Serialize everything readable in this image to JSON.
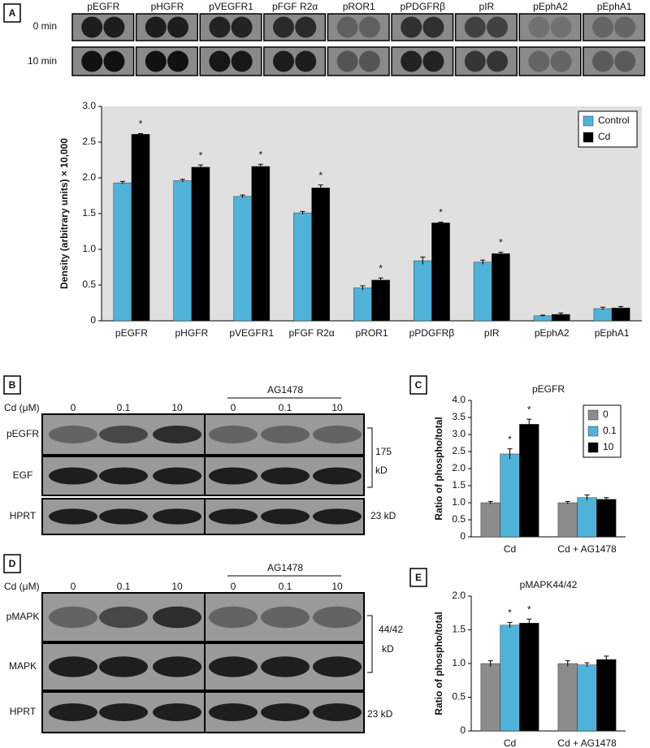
{
  "figure": {
    "panel_labels": [
      "A",
      "B",
      "C",
      "D",
      "E"
    ],
    "array_blot": {
      "columns": [
        "pEGFR",
        "pHGFR",
        "pVEGFR1",
        "pFGF R2α",
        "pROR1",
        "pPDGFRβ",
        "pIR",
        "pEphA2",
        "pEphA1"
      ],
      "rows": [
        "0 min",
        "10 min"
      ]
    },
    "blot_B": {
      "dose_label": "Cd (μM)",
      "doses": [
        "0",
        "0.1",
        "10",
        "0",
        "0.1",
        "10"
      ],
      "inhibitor": "AG1478",
      "rows": [
        "pEGFR",
        "EGF",
        "HPRT"
      ],
      "size_labels": [
        "175",
        "kD",
        "23 kD"
      ]
    },
    "blot_D": {
      "dose_label": "Cd (μM)",
      "doses": [
        "0",
        "0.1",
        "10",
        "0",
        "0.1",
        "10"
      ],
      "inhibitor": "AG1478",
      "rows": [
        "pMAPK",
        "MAPK",
        "HPRT"
      ],
      "size_labels": [
        "44/42",
        "kD",
        "23 kD"
      ]
    }
  },
  "chart_data": [
    {
      "type": "bar",
      "y_label": "Density (arbitrary units) × 10,000",
      "background": "#e0e0e0",
      "legend": "upper right",
      "categories": [
        "pEGFR",
        "pHGFR",
        "pVEGFR1",
        "pFGF R2α",
        "pROR1",
        "pPDGFRβ",
        "pIR",
        "pEphA2",
        "pEphA1"
      ],
      "series": [
        {
          "name": "Control",
          "color": "#4fb3d9",
          "values": [
            1.93,
            1.96,
            1.74,
            1.51,
            0.46,
            0.84,
            0.82,
            0.07,
            0.17
          ],
          "errors": [
            0.02,
            0.02,
            0.02,
            0.02,
            0.03,
            0.05,
            0.03,
            0.01,
            0.02
          ],
          "significance": [
            null,
            null,
            null,
            null,
            null,
            null,
            null,
            null,
            null
          ]
        },
        {
          "name": "Cd",
          "color": "#000000",
          "values": [
            2.61,
            2.15,
            2.16,
            1.86,
            0.57,
            1.37,
            0.94,
            0.09,
            0.18
          ],
          "errors": [
            0.01,
            0.03,
            0.03,
            0.04,
            0.03,
            0.01,
            0.02,
            0.02,
            0.02
          ],
          "significance": [
            "*",
            "*",
            "*",
            "*",
            "*",
            "*",
            "*",
            null,
            null
          ]
        }
      ],
      "ylim": [
        0,
        3
      ],
      "yticks": [
        0,
        0.5,
        {
          "value": 1,
          "label": "1.0"
        },
        1.5,
        {
          "value": 2,
          "label": "2.0"
        },
        2.5,
        {
          "value": 3,
          "label": "3.0"
        }
      ]
    },
    {
      "type": "bar",
      "title": "pEGFR",
      "y_label": "Ratio of phospho/total",
      "background": "#ffffff",
      "legend": "upper right",
      "categories": [
        "Cd",
        "Cd + AG1478"
      ],
      "series": [
        {
          "name": "0",
          "color": "#8c8c8c",
          "values": [
            1.0,
            1.0
          ],
          "errors": [
            0.04,
            0.04
          ],
          "significance": [
            null,
            null
          ]
        },
        {
          "name": "0.1",
          "color": "#4fb3d9",
          "values": [
            2.43,
            1.15
          ],
          "errors": [
            0.15,
            0.08
          ],
          "significance": [
            "*",
            null
          ]
        },
        {
          "name": "10",
          "color": "#000000",
          "values": [
            3.3,
            1.1
          ],
          "errors": [
            0.15,
            0.05
          ],
          "significance": [
            "*",
            null
          ]
        }
      ],
      "ylim": [
        0,
        4
      ],
      "yticks": [
        0,
        0.5,
        {
          "value": 1,
          "label": "1.0"
        },
        1.5,
        {
          "value": 2,
          "label": "2.0"
        },
        2.5,
        {
          "value": 3,
          "label": "3.0"
        },
        3.5,
        {
          "value": 4,
          "label": "4.0"
        }
      ]
    },
    {
      "type": "bar",
      "title": "pMAPK44/42",
      "y_label": "Ratio of phospho/total",
      "background": "#ffffff",
      "categories": [
        "Cd",
        "Cd + AG1478"
      ],
      "series": [
        {
          "name": "0",
          "color": "#8c8c8c",
          "values": [
            1.0,
            1.0
          ],
          "errors": [
            0.04,
            0.04
          ],
          "significance": [
            null,
            null
          ]
        },
        {
          "name": "0.1",
          "color": "#4fb3d9",
          "values": [
            1.57,
            0.98
          ],
          "errors": [
            0.04,
            0.03
          ],
          "significance": [
            "*",
            null
          ]
        },
        {
          "name": "10",
          "color": "#000000",
          "values": [
            1.6,
            1.06
          ],
          "errors": [
            0.06,
            0.05
          ],
          "significance": [
            "*",
            null
          ]
        }
      ],
      "ylim": [
        0,
        2
      ],
      "yticks": [
        0,
        0.5,
        {
          "value": 1,
          "label": "1.0"
        },
        1.5,
        {
          "value": 2,
          "label": "2.0"
        }
      ]
    }
  ]
}
